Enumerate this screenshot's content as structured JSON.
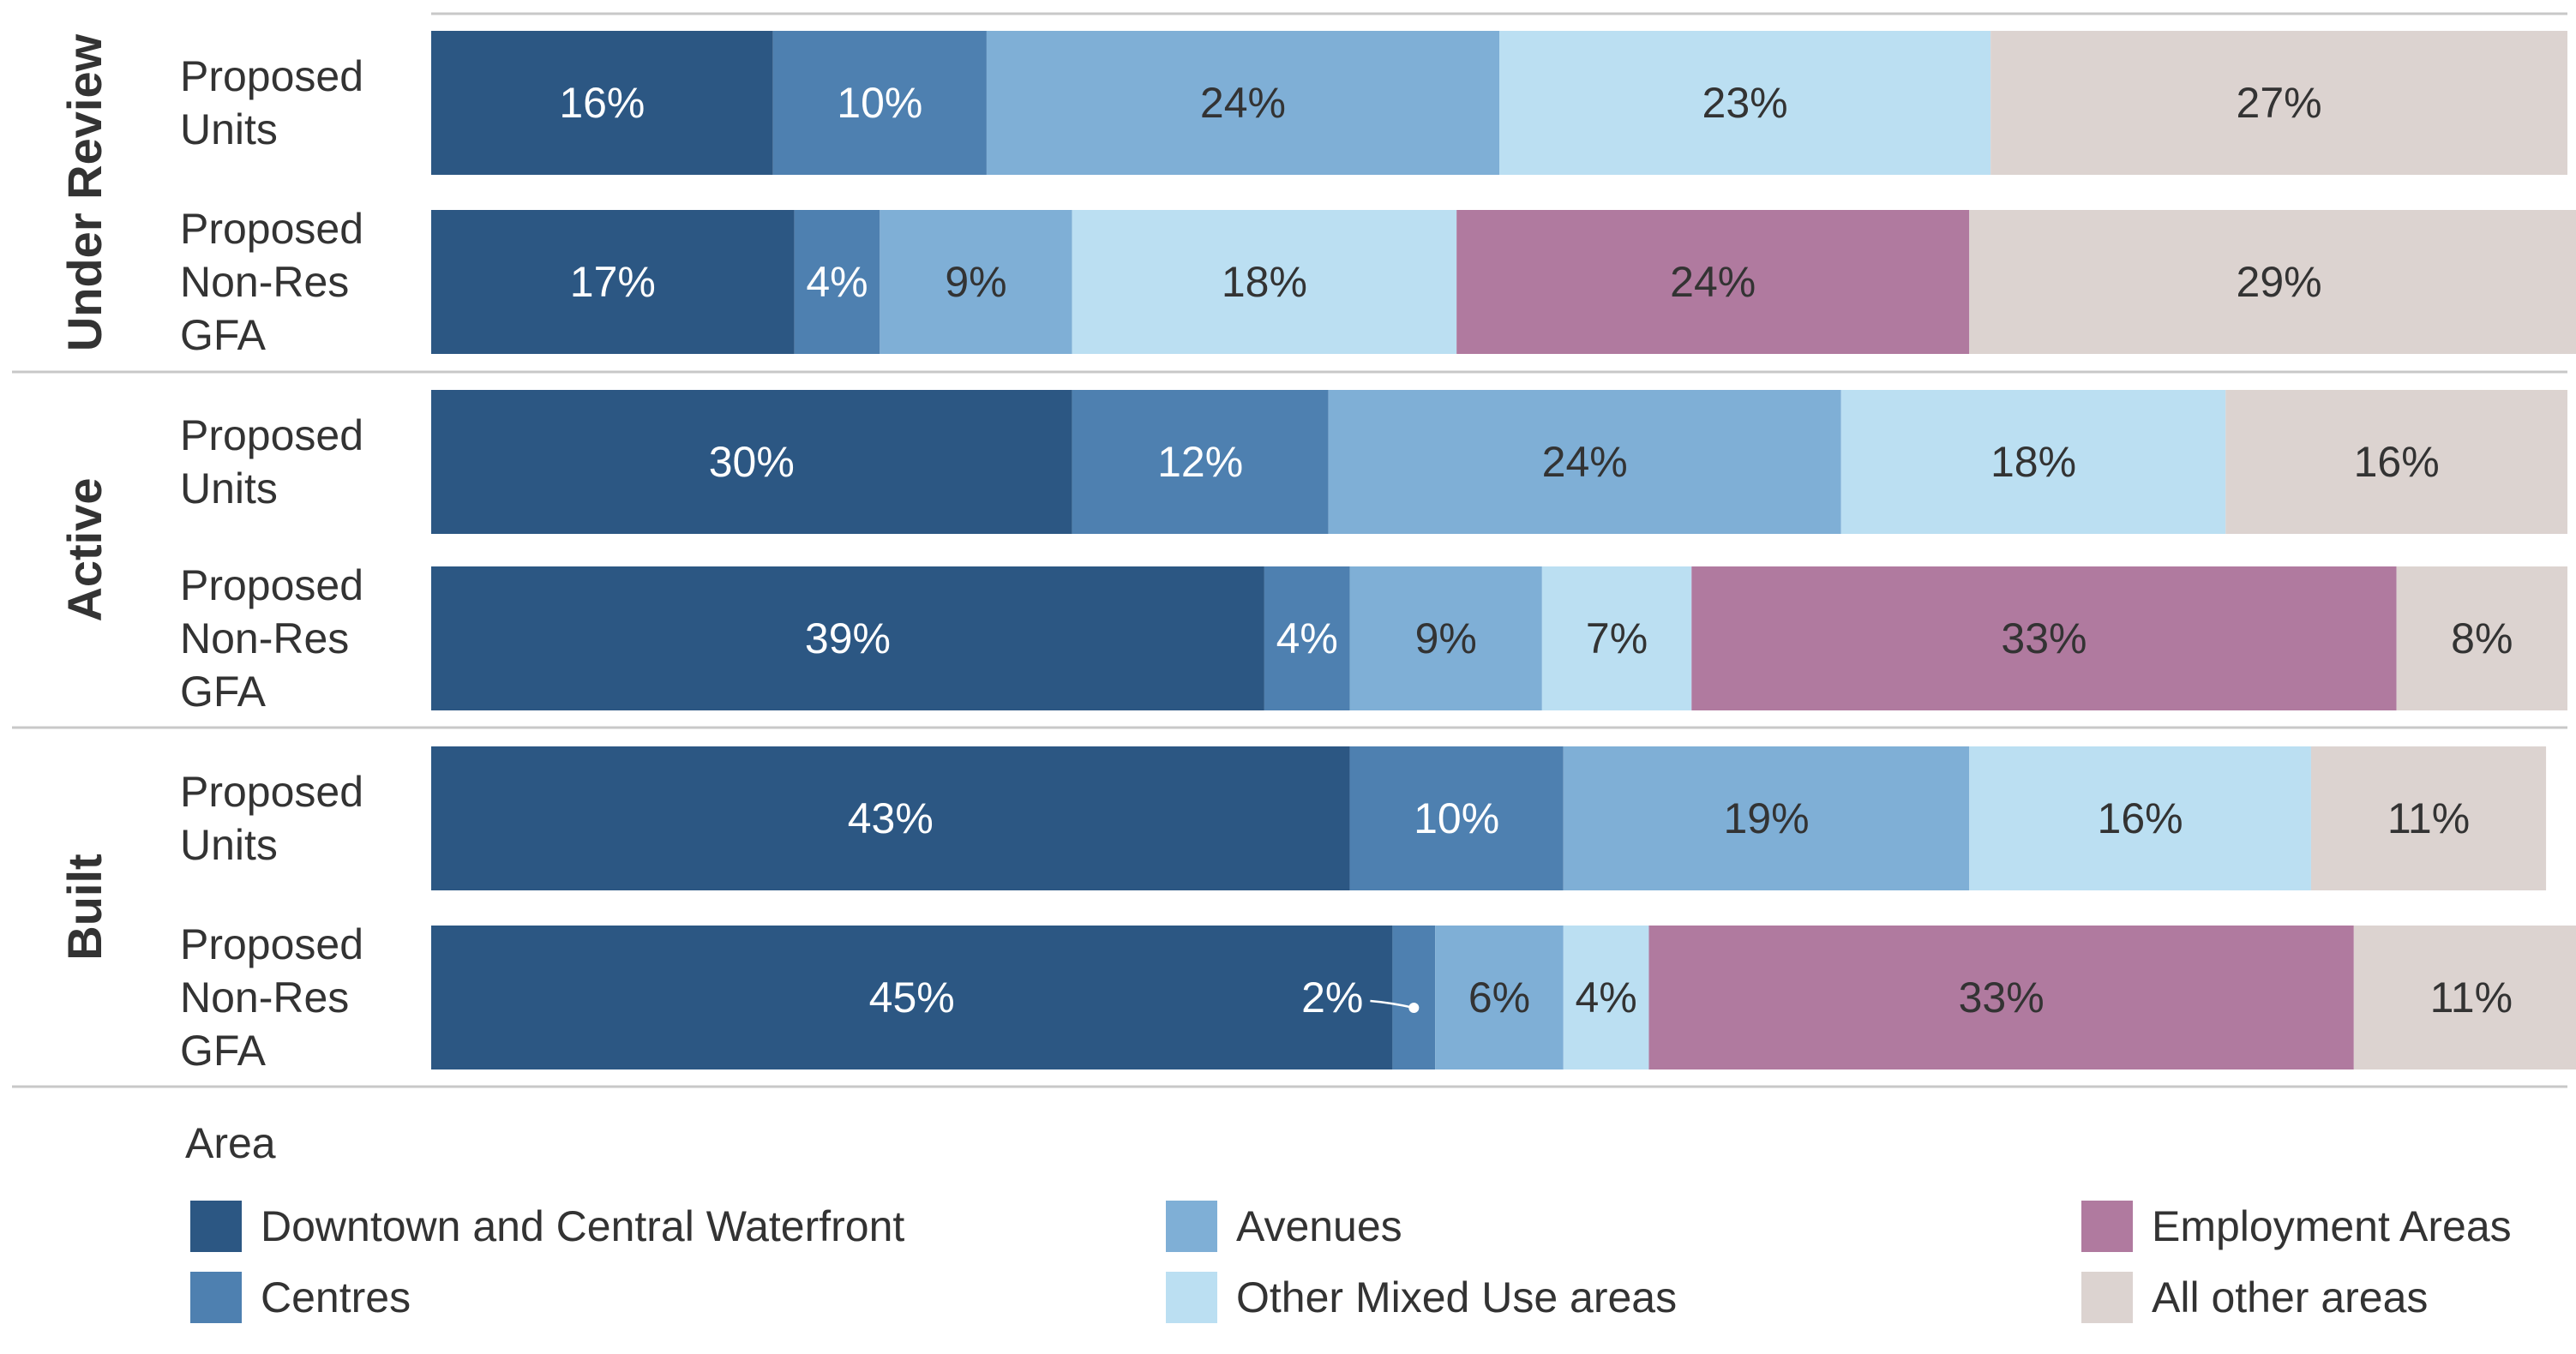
{
  "chart_data": {
    "type": "bar",
    "orientation": "horizontal",
    "stacked": true,
    "value_unit": "%",
    "groups": [
      {
        "label": "Under Review",
        "rows": [
          {
            "label": "Proposed Units",
            "values": {
              "Downtown and Central Waterfront": 16,
              "Centres": 10,
              "Avenues": 24,
              "Other Mixed Use areas": 23,
              "All other areas": 27
            }
          },
          {
            "label": "Proposed Non-Res GFA",
            "values": {
              "Downtown and Central Waterfront": 17,
              "Centres": 4,
              "Avenues": 9,
              "Other Mixed Use areas": 18,
              "Employment Areas": 24,
              "All other areas": 29
            }
          }
        ]
      },
      {
        "label": "Active",
        "rows": [
          {
            "label": "Proposed Units",
            "values": {
              "Downtown and Central Waterfront": 30,
              "Centres": 12,
              "Avenues": 24,
              "Other Mixed Use areas": 18,
              "All other areas": 16
            }
          },
          {
            "label": "Proposed Non-Res GFA",
            "values": {
              "Downtown and Central Waterfront": 39,
              "Centres": 4,
              "Avenues": 9,
              "Other Mixed Use areas": 7,
              "Employment Areas": 33,
              "All other areas": 8
            }
          }
        ]
      },
      {
        "label": "Built",
        "rows": [
          {
            "label": "Proposed Units",
            "values": {
              "Downtown and Central Waterfront": 43,
              "Centres": 10,
              "Avenues": 19,
              "Other Mixed Use areas": 16,
              "All other areas": 11
            }
          },
          {
            "label": "Proposed Non-Res GFA",
            "values": {
              "Downtown and Central Waterfront": 45,
              "Centres": 2,
              "Avenues": 6,
              "Other Mixed Use areas": 4,
              "Employment Areas": 33,
              "All other areas": 11
            }
          }
        ]
      }
    ],
    "categories": [
      "Downtown and Central Waterfront",
      "Centres",
      "Avenues",
      "Other Mixed Use areas",
      "Employment Areas",
      "All other areas"
    ],
    "colors": {
      "Downtown and Central Waterfront": "#2c5783",
      "Centres": "#4e80b0",
      "Avenues": "#7fafd6",
      "Other Mixed Use areas": "#bbdff2",
      "Employment Areas": "#b07a9f",
      "All other areas": "#dcd3d0"
    },
    "label_colors": {
      "Downtown and Central Waterfront": "#ffffff",
      "Centres": "#ffffff",
      "Avenues": "#333333",
      "Other Mixed Use areas": "#333333",
      "Employment Areas": "#333333",
      "All other areas": "#333333"
    },
    "legend": {
      "title": "Area",
      "position": "bottom"
    }
  }
}
